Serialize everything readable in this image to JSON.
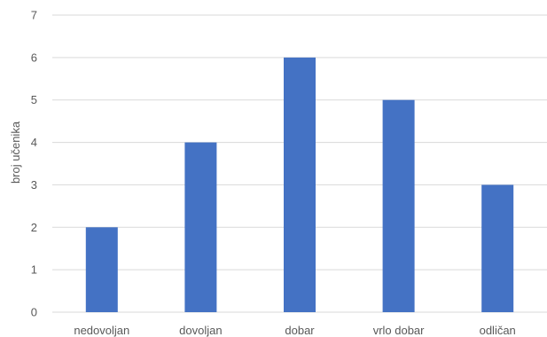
{
  "chart_data": {
    "type": "bar",
    "ylabel": "broj učenika",
    "categories": [
      "nedovoljan",
      "dovoljan",
      "dobar",
      "vrlo dobar",
      "odličan"
    ],
    "values": [
      2,
      4,
      6,
      5,
      3
    ],
    "ylim": [
      0,
      7
    ],
    "yticks": [
      0,
      1,
      2,
      3,
      4,
      5,
      6,
      7
    ],
    "grid": true,
    "legend": "none",
    "bar_color": "#4472C4",
    "grid_color": "#D9D9D9",
    "text_color": "#595959"
  }
}
